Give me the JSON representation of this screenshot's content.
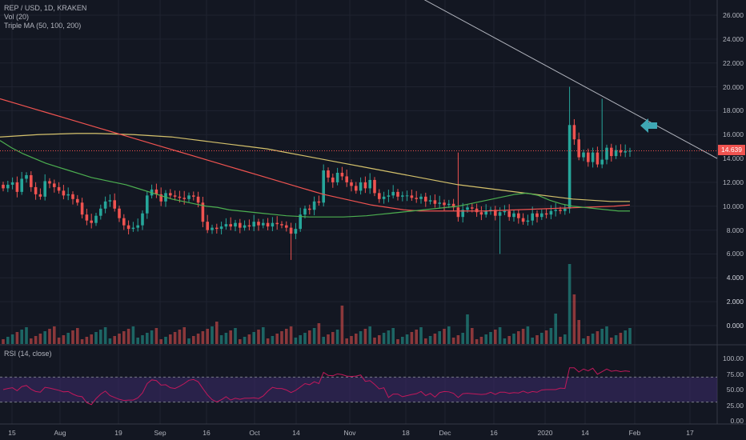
{
  "legend": {
    "symbol": "REP / USD, 1D, KRAKEN",
    "volume": "Vol (20)",
    "ma": "Triple MA (50, 100, 200)",
    "rsi": "RSI (14, close)"
  },
  "last_price": "14.639",
  "colors": {
    "up": "#26a69a",
    "down": "#ef5350",
    "ma50": "#4caf50",
    "ma100": "#ef5350",
    "ma200": "#d4c16b",
    "rsi": "#c2185b",
    "rsi_band": "#3c2b6b",
    "arrow": "#3fa7b4",
    "trendline": "#b2b5be"
  },
  "chart_data": {
    "type": "candlestick",
    "price_axis": {
      "ticks": [
        "26.000",
        "24.000",
        "22.000",
        "20.000",
        "18.000",
        "16.000",
        "14.000",
        "12.000",
        "10.000",
        "8.000",
        "6.000",
        "4.000",
        "2.000",
        "0.000"
      ]
    },
    "x_ticks": [
      "15",
      "Aug",
      "19",
      "Sep",
      "16",
      "Oct",
      "14",
      "Nov",
      "18",
      "Dec",
      "16",
      "2020",
      "14",
      "Feb",
      "17"
    ],
    "rsi_axis": {
      "ticks": [
        "100.00",
        "75.00",
        "50.00",
        "25.00",
        "0.00"
      ]
    },
    "price_series": [
      11.5,
      11.8,
      12.0,
      11.2,
      12.3,
      12.6,
      11.6,
      11.0,
      10.8,
      12.1,
      11.9,
      11.6,
      11.3,
      10.9,
      11.0,
      10.6,
      10.3,
      9.3,
      8.8,
      8.6,
      9.2,
      9.8,
      10.4,
      10.5,
      9.8,
      9.0,
      8.4,
      8.1,
      8.2,
      8.4,
      9.4,
      10.9,
      11.4,
      11.0,
      10.4,
      11.1,
      10.9,
      10.8,
      10.7,
      10.6,
      10.9,
      10.8,
      10.3,
      8.7,
      8.0,
      8.2,
      8.1,
      8.3,
      8.5,
      8.3,
      8.6,
      8.2,
      8.4,
      8.3,
      8.7,
      8.4,
      8.6,
      8.3,
      8.6,
      8.5,
      8.4,
      8.2,
      7.7,
      8.1,
      9.3,
      9.8,
      9.7,
      10.4,
      10.3,
      13.0,
      12.4,
      12.0,
      12.8,
      12.5,
      12.0,
      11.7,
      11.3,
      12.0,
      11.5,
      12.2,
      11.1,
      10.6,
      10.8,
      10.9,
      11.2,
      10.8,
      10.9,
      10.9,
      10.7,
      10.6,
      10.8,
      10.4,
      10.5,
      10.2,
      10.3,
      10.1,
      10.2,
      9.9,
      9.1,
      9.7,
      9.9,
      9.8,
      9.5,
      9.3,
      9.6,
      9.7,
      9.2,
      9.5,
      9.6,
      9.1,
      9.4,
      9.0,
      8.7,
      8.8,
      9.4,
      9.1,
      9.4,
      9.3,
      9.6,
      9.7,
      9.6,
      9.8,
      16.8,
      15.6,
      14.1,
      14.5,
      13.7,
      14.5,
      13.5,
      13.9,
      14.9,
      14.2,
      14.7,
      14.5,
      14.6,
      14.64
    ],
    "ma50": [
      15.5,
      14.9,
      14.4,
      14.0,
      13.6,
      13.3,
      13.0,
      12.7,
      12.4,
      12.2,
      12.0,
      11.8,
      11.5,
      11.2,
      10.9,
      10.6,
      10.4,
      10.2,
      10.0,
      9.9,
      9.7,
      9.6,
      9.5,
      9.4,
      9.3,
      9.2,
      9.15,
      9.1,
      9.1,
      9.1,
      9.1,
      9.15,
      9.2,
      9.3,
      9.4,
      9.5,
      9.6,
      9.7,
      9.8,
      9.9,
      10.0,
      10.2,
      10.4,
      10.6,
      10.8,
      11.0,
      11.1,
      10.9,
      10.5,
      10.2,
      10.0,
      9.9,
      9.8,
      9.7,
      9.6,
      9.6
    ],
    "ma100": [
      19.0,
      18.6,
      18.2,
      17.8,
      17.4,
      17.0,
      16.6,
      16.2,
      15.8,
      15.4,
      15.0,
      14.6,
      14.2,
      13.8,
      13.4,
      13.0,
      12.6,
      12.2,
      11.8,
      11.4,
      11.0,
      10.7,
      10.4,
      10.1,
      9.9,
      9.7,
      9.6,
      9.6,
      9.6,
      9.6,
      9.6,
      9.65,
      9.7,
      9.75,
      9.8,
      9.85,
      9.9,
      9.95,
      10.0,
      10.1
    ],
    "ma200": [
      15.8,
      15.9,
      16.0,
      16.05,
      16.1,
      16.1,
      16.05,
      16.0,
      15.9,
      15.8,
      15.6,
      15.4,
      15.2,
      15.0,
      14.8,
      14.5,
      14.2,
      13.9,
      13.6,
      13.3,
      13.0,
      12.7,
      12.4,
      12.1,
      11.8,
      11.6,
      11.4,
      11.2,
      11.0,
      10.8,
      10.6,
      10.5,
      10.4,
      10.4
    ],
    "trendline": {
      "from_price": 27.3,
      "to_price": 14.0
    },
    "volume_axis": {
      "ticks": [
        "4.000",
        "2.000",
        "0.000"
      ]
    }
  }
}
